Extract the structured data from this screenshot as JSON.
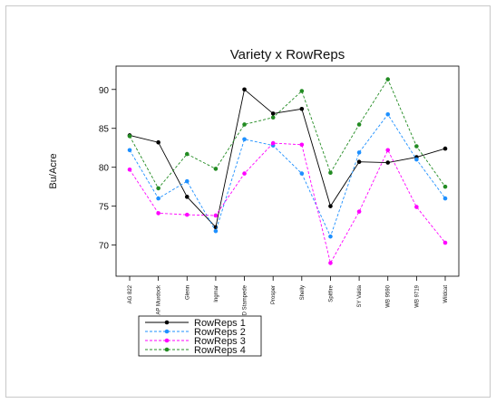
{
  "chart_data": {
    "type": "line",
    "title": "Variety x RowReps",
    "ylabel": "Bu/Acre",
    "xlabel": "",
    "ylim": [
      66,
      93
    ],
    "yticks": [
      70,
      75,
      80,
      85,
      90
    ],
    "grid": false,
    "legend_position": "bottom-left",
    "categories": [
      "AG 822",
      "AP Murdock",
      "Glenn",
      "Ingmar",
      "ND Stampede",
      "Prosper",
      "Shelly",
      "Spitfire",
      "SY Valda",
      "WB 9590",
      "WB 9719",
      "Wildcat"
    ],
    "series": [
      {
        "name": "RowReps 1",
        "color": "#000000",
        "values": [
          84.1,
          83.2,
          76.2,
          72.3,
          90.0,
          86.9,
          87.5,
          75.0,
          80.7,
          80.6,
          81.3,
          82.4
        ]
      },
      {
        "name": "RowReps 2",
        "color": "#1e90ff",
        "values": [
          82.2,
          76.0,
          78.2,
          71.8,
          83.6,
          82.8,
          79.2,
          71.1,
          81.9,
          86.8,
          81.0,
          76.0
        ]
      },
      {
        "name": "RowReps 3",
        "color": "#ff00ff",
        "values": [
          79.7,
          74.1,
          73.9,
          73.8,
          79.2,
          83.1,
          82.9,
          67.7,
          74.3,
          82.2,
          74.9,
          70.3
        ]
      },
      {
        "name": "RowReps 4",
        "color": "#228b22",
        "values": [
          84.0,
          77.3,
          81.7,
          79.8,
          85.5,
          86.4,
          89.8,
          79.3,
          85.5,
          91.3,
          82.7,
          77.5
        ]
      }
    ]
  }
}
